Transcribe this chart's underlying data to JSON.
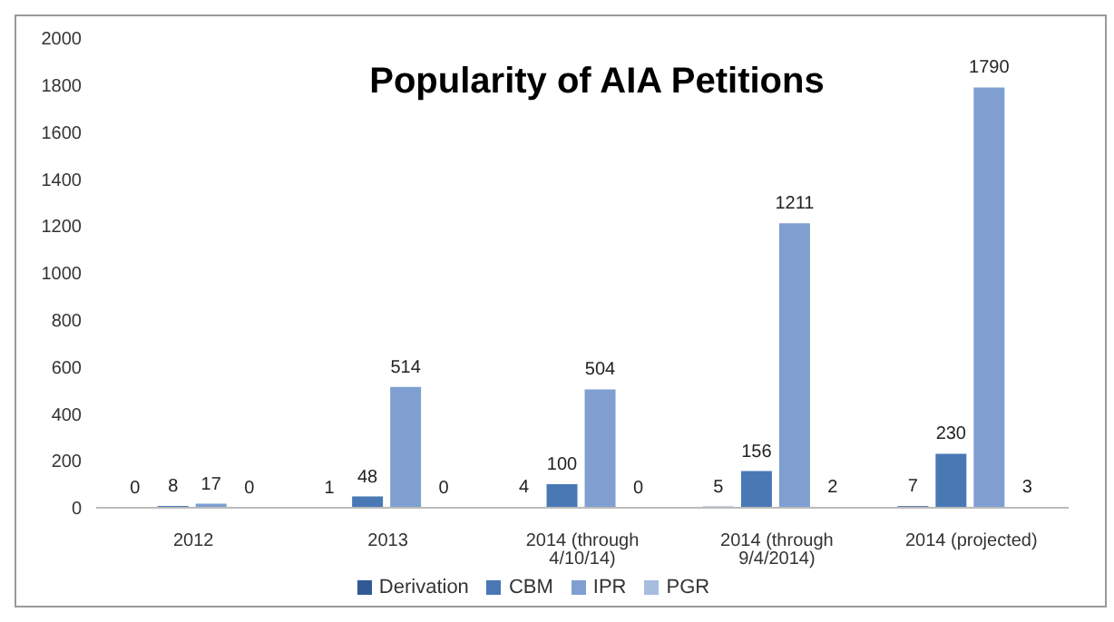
{
  "chart_data": {
    "type": "bar",
    "title": "Popularity of AIA Petitions",
    "categories": [
      "2012",
      "2013",
      "2014 (through 4/10/14)",
      "2014 (through 9/4/2014)",
      "2014 (projected)"
    ],
    "series": [
      {
        "name": "Derivation",
        "color": "#2f5a94",
        "values": [
          0,
          1,
          4,
          5,
          7
        ]
      },
      {
        "name": "CBM",
        "color": "#4a78b5",
        "values": [
          8,
          48,
          100,
          156,
          230
        ]
      },
      {
        "name": "IPR",
        "color": "#7f9fd1",
        "values": [
          17,
          514,
          504,
          1211,
          1790
        ]
      },
      {
        "name": "PGR",
        "color": "#a8bce0",
        "values": [
          0,
          0,
          0,
          2,
          3
        ]
      }
    ],
    "ylim": [
      0,
      2000
    ],
    "yticks": [
      0,
      200,
      400,
      600,
      800,
      1000,
      1200,
      1400,
      1600,
      1800,
      2000
    ],
    "data_labels": true,
    "grid": false,
    "legend": "bottom"
  }
}
